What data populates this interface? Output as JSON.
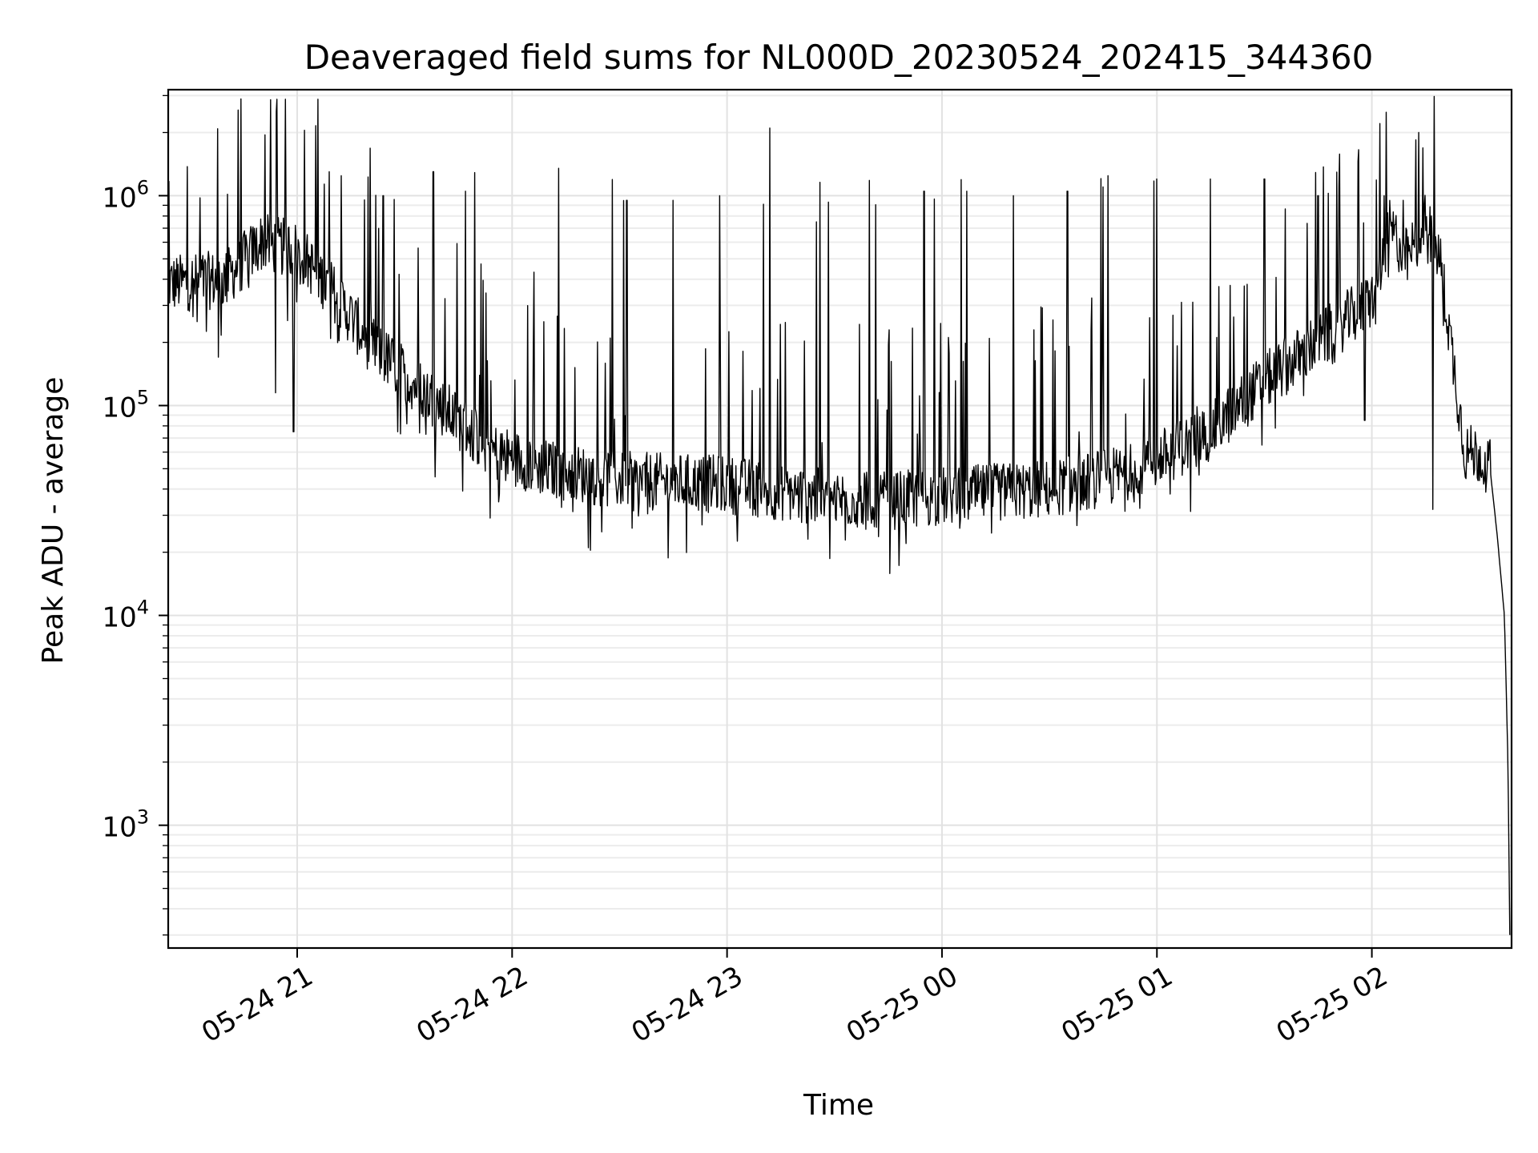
{
  "chart_data": {
    "type": "line",
    "title": "Deaveraged field sums for NL000D_20230524_202415_344360",
    "xlabel": "Time",
    "ylabel": "Peak ADU - average",
    "yscale": "log",
    "ylim": [
      260,
      3200000
    ],
    "xlim": [
      "2023-05-24 20:24",
      "2023-05-25 02:39"
    ],
    "grid": true,
    "x_ticks": [
      {
        "label": "05-24 21",
        "time": "2023-05-24 21:00"
      },
      {
        "label": "05-24 22",
        "time": "2023-05-24 22:00"
      },
      {
        "label": "05-24 23",
        "time": "2023-05-24 23:00"
      },
      {
        "label": "05-25 00",
        "time": "2023-05-25 00:00"
      },
      {
        "label": "05-25 01",
        "time": "2023-05-25 01:00"
      },
      {
        "label": "05-25 02",
        "time": "2023-05-25 02:00"
      }
    ],
    "y_ticks": [
      {
        "base": "10",
        "exp": "3",
        "value": 1000
      },
      {
        "base": "10",
        "exp": "4",
        "value": 10000
      },
      {
        "base": "10",
        "exp": "5",
        "value": 100000
      },
      {
        "base": "10",
        "exp": "6",
        "value": 1000000
      }
    ],
    "series": [
      {
        "color": "#000000",
        "baseline": [
          [
            "2023-05-24 20:24",
            380000
          ],
          [
            "2023-05-24 20:40",
            400000
          ],
          [
            "2023-05-24 20:50",
            600000
          ],
          [
            "2023-05-24 21:00",
            550000
          ],
          [
            "2023-05-24 21:10",
            350000
          ],
          [
            "2023-05-24 21:20",
            200000
          ],
          [
            "2023-05-24 21:30",
            140000
          ],
          [
            "2023-05-24 21:40",
            100000
          ],
          [
            "2023-05-24 21:55",
            60000
          ],
          [
            "2023-05-24 22:10",
            50000
          ],
          [
            "2023-05-24 22:30",
            44000
          ],
          [
            "2023-05-24 23:00",
            42000
          ],
          [
            "2023-05-24 23:30",
            36000
          ],
          [
            "2023-05-24 23:45",
            35000
          ],
          [
            "2023-05-25 00:00",
            37000
          ],
          [
            "2023-05-25 00:30",
            40000
          ],
          [
            "2023-05-25 00:50",
            47000
          ],
          [
            "2023-05-25 01:00",
            55000
          ],
          [
            "2023-05-25 01:15",
            75000
          ],
          [
            "2023-05-25 01:30",
            130000
          ],
          [
            "2023-05-25 01:45",
            200000
          ],
          [
            "2023-05-25 02:00",
            320000
          ],
          [
            "2023-05-25 02:05",
            700000
          ],
          [
            "2023-05-25 02:10",
            500000
          ],
          [
            "2023-05-25 02:15",
            750000
          ],
          [
            "2023-05-25 02:19",
            500000
          ],
          [
            "2023-05-25 02:23",
            150000
          ],
          [
            "2023-05-25 02:26",
            60000
          ],
          [
            "2023-05-25 02:30",
            58000
          ],
          [
            "2023-05-25 02:33",
            50000
          ],
          [
            "2023-05-25 02:35",
            24000
          ],
          [
            "2023-05-25 02:37",
            10000
          ],
          [
            "2023-05-25 02:38",
            2000
          ],
          [
            "2023-05-25 02:38.5",
            300
          ]
        ],
        "spikes": [
          [
            "2023-05-24 20:51",
            1950000
          ],
          [
            "2023-05-24 21:02",
            2050000
          ],
          [
            "2023-05-24 21:09",
            1300000
          ],
          [
            "2023-05-24 21:24",
            1000000
          ],
          [
            "2023-05-24 21:38",
            1300000
          ],
          [
            "2023-05-24 21:47",
            1050000
          ],
          [
            "2023-05-24 22:13",
            1350000
          ],
          [
            "2023-05-24 22:32",
            950000
          ],
          [
            "2023-05-24 22:45",
            950000
          ],
          [
            "2023-05-24 22:58",
            1000000
          ],
          [
            "2023-05-24 23:12",
            2100000
          ],
          [
            "2023-05-24 23:25",
            750000
          ],
          [
            "2023-05-24 23:55",
            1050000
          ],
          [
            "2023-05-25 00:07",
            1050000
          ],
          [
            "2023-05-25 00:20",
            1000000
          ],
          [
            "2023-05-25 00:35",
            1050000
          ],
          [
            "2023-05-25 00:45",
            1100000
          ],
          [
            "2023-05-25 01:00",
            1200000
          ],
          [
            "2023-05-25 01:15",
            1200000
          ],
          [
            "2023-05-25 01:30",
            1200000
          ],
          [
            "2023-05-25 01:45",
            1000000
          ],
          [
            "2023-05-25 02:13",
            2000000
          ]
        ],
        "dips": [
          [
            "2023-05-24 20:38",
            170000
          ],
          [
            "2023-05-24 20:54",
            115000
          ],
          [
            "2023-05-24 20:59",
            75000
          ],
          [
            "2023-05-24 21:28",
            75000
          ],
          [
            "2023-05-24 22:25",
            25000
          ],
          [
            "2023-05-24 23:50",
            22000
          ],
          [
            "2023-05-25 00:05",
            26000
          ],
          [
            "2023-05-25 01:58",
            85000
          ],
          [
            "2023-05-25 02:17",
            32000
          ]
        ]
      }
    ]
  }
}
